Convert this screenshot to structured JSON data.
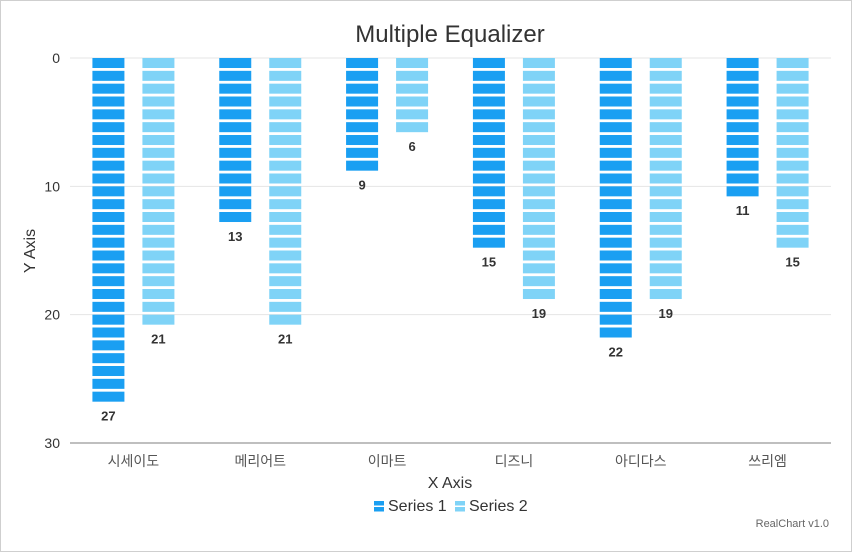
{
  "chart_data": {
    "type": "bar",
    "subtype": "equalizer",
    "title": "Multiple Equalizer",
    "xlabel": "X Axis",
    "ylabel": "Y Axis",
    "ylim": [
      0,
      30
    ],
    "y_reversed": true,
    "y_ticks": [
      0,
      10,
      20,
      30
    ],
    "grid": true,
    "legend": "bottom",
    "categories": [
      "시세이도",
      "메리어트",
      "이마트",
      "디즈니",
      "아디다스",
      "쓰리엠"
    ],
    "series": [
      {
        "name": "Series 1",
        "color": "#1a9ff2",
        "values": [
          27,
          13,
          9,
          15,
          22,
          11
        ]
      },
      {
        "name": "Series 2",
        "color": "#7fd3f7",
        "values": [
          21,
          21,
          6,
          19,
          19,
          15
        ]
      }
    ],
    "credit": "RealChart v1.0"
  }
}
